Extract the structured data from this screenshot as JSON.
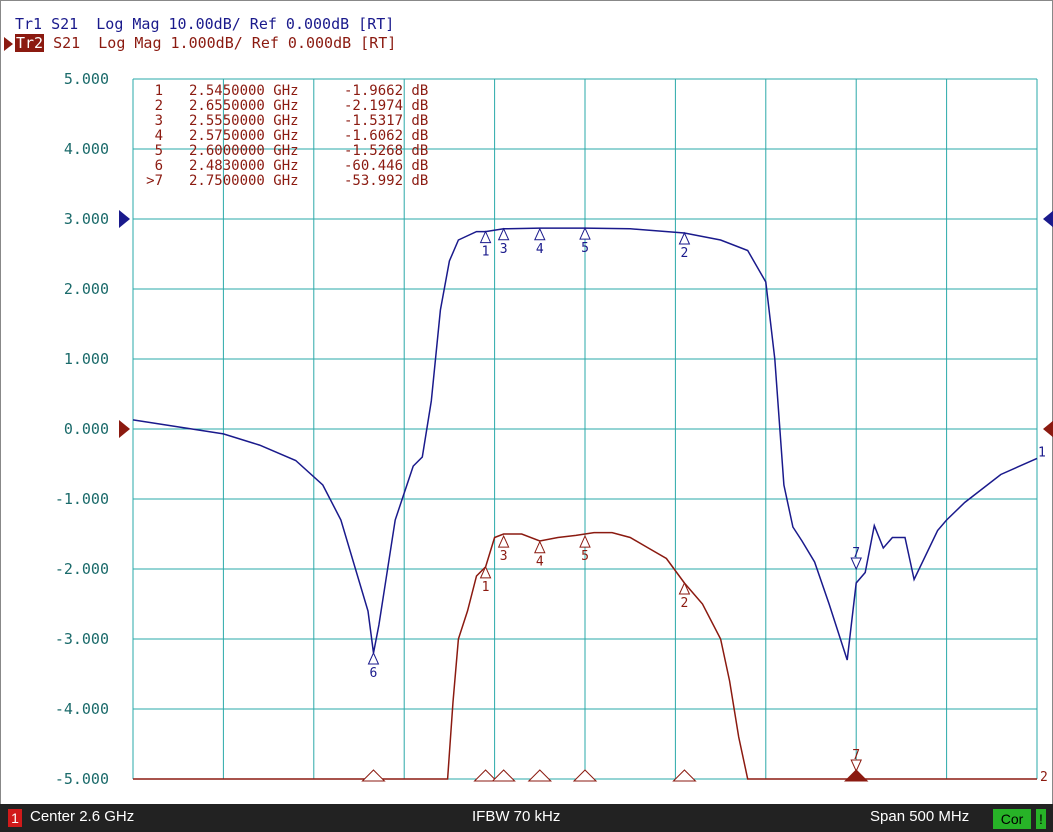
{
  "traces": {
    "tr1": {
      "label": "Tr1",
      "text": " S21  Log Mag 10.00dB/ Ref 0.000dB [RT]",
      "color": "#1a1a8c"
    },
    "tr2": {
      "label": "Tr2",
      "text": " S21  Log Mag 1.000dB/ Ref 0.000dB [RT]",
      "color": "#8b1a10"
    }
  },
  "status": {
    "channel": "1",
    "center": "Center 2.6 GHz",
    "ifbw": "IFBW 70 kHz",
    "span": "Span 500 MHz",
    "cor": "Cor",
    "flag": "!"
  },
  "marker_table": [
    {
      "num": "1",
      "freq": "2.5450000 GHz",
      "value": "-1.9662 dB"
    },
    {
      "num": "2",
      "freq": "2.6550000 GHz",
      "value": "-2.1974 dB"
    },
    {
      "num": "3",
      "freq": "2.5550000 GHz",
      "value": "-1.5317 dB"
    },
    {
      "num": "4",
      "freq": "2.5750000 GHz",
      "value": "-1.6062 dB"
    },
    {
      "num": "5",
      "freq": "2.6000000 GHz",
      "value": "-1.5268 dB"
    },
    {
      "num": "6",
      "freq": "2.4830000 GHz",
      "value": "-60.446 dB"
    },
    {
      "num": ">7",
      "freq": "2.7500000 GHz",
      "value": "-53.992 dB"
    }
  ],
  "colors": {
    "grid": "#2aa9a9",
    "axis_text": "#1a6a6a",
    "tr1": "#1a1a8c",
    "tr2": "#8b1a10"
  },
  "chart_data": {
    "type": "line",
    "x_range_ghz": [
      2.35,
      2.85
    ],
    "ylim": [
      -5,
      5
    ],
    "y_ticks": [
      "5.000",
      "4.000",
      "3.000",
      "2.000",
      "1.000",
      "0.000",
      "-1.000",
      "-2.000",
      "-3.000",
      "-4.000",
      "-5.000"
    ],
    "series": [
      {
        "name": "Tr1",
        "color": "#1a1a8c",
        "x": [
          2.35,
          2.375,
          2.4,
          2.42,
          2.44,
          2.455,
          2.465,
          2.48,
          2.483,
          2.486,
          2.495,
          2.505,
          2.51,
          2.515,
          2.52,
          2.525,
          2.53,
          2.54,
          2.545,
          2.555,
          2.575,
          2.6,
          2.625,
          2.655,
          2.675,
          2.69,
          2.7,
          2.705,
          2.71,
          2.715,
          2.72,
          2.727,
          2.735,
          2.745,
          2.75,
          2.755,
          2.76,
          2.765,
          2.77,
          2.777,
          2.782,
          2.795,
          2.8,
          2.81,
          2.83,
          2.85
        ],
        "y": [
          0.13,
          0.03,
          -0.07,
          -0.23,
          -0.45,
          -0.8,
          -1.3,
          -2.6,
          -3.2,
          -2.8,
          -1.3,
          -0.53,
          -0.4,
          0.4,
          1.7,
          2.4,
          2.7,
          2.82,
          2.82,
          2.86,
          2.87,
          2.87,
          2.86,
          2.8,
          2.7,
          2.55,
          2.1,
          1.0,
          -0.8,
          -1.4,
          -1.6,
          -1.9,
          -2.5,
          -3.3,
          -2.2,
          -2.05,
          -1.38,
          -1.7,
          -1.55,
          -1.55,
          -2.15,
          -1.45,
          -1.3,
          -1.05,
          -0.65,
          -0.42
        ]
      },
      {
        "name": "Tr2",
        "color": "#8b1a10",
        "x": [
          2.35,
          2.524,
          2.527,
          2.53,
          2.535,
          2.54,
          2.545,
          2.55,
          2.555,
          2.565,
          2.575,
          2.585,
          2.595,
          2.605,
          2.615,
          2.625,
          2.635,
          2.645,
          2.655,
          2.665,
          2.675,
          2.68,
          2.685,
          2.69,
          2.85
        ],
        "y": [
          -5,
          -5,
          -3.9,
          -3.0,
          -2.6,
          -2.1,
          -1.97,
          -1.55,
          -1.5,
          -1.5,
          -1.6,
          -1.55,
          -1.52,
          -1.48,
          -1.48,
          -1.55,
          -1.7,
          -1.85,
          -2.2,
          -2.5,
          -3.0,
          -3.6,
          -4.4,
          -5,
          -5
        ]
      }
    ],
    "markers": [
      {
        "num": "1",
        "x": 2.545,
        "y1": 2.82,
        "y2": -1.97
      },
      {
        "num": "2",
        "x": 2.655,
        "y1": 2.8,
        "y2": -2.2
      },
      {
        "num": "3",
        "x": 2.555,
        "y1": 2.86,
        "y2": -1.53
      },
      {
        "num": "4",
        "x": 2.575,
        "y1": 2.86,
        "y2": -1.61
      },
      {
        "num": "5",
        "x": 2.6,
        "y1": 2.87,
        "y2": -1.53
      },
      {
        "num": "6",
        "x": 2.483,
        "y1": -3.2,
        "y2": null
      },
      {
        "num": "7",
        "x": 2.75,
        "y1": -2.0,
        "y2": -5.0
      }
    ]
  }
}
